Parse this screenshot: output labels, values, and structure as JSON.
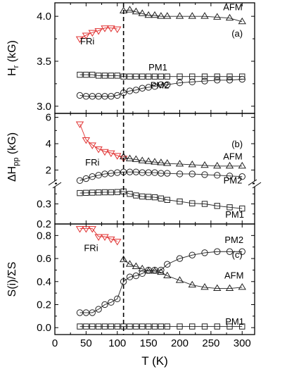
{
  "chart_data": {
    "type": "scatter",
    "x_axis": {
      "label": "T (K)",
      "range": [
        0,
        320
      ],
      "ticks": [
        0,
        50,
        100,
        150,
        200,
        250,
        300
      ],
      "tick_labels": [
        "0",
        "50",
        "100",
        "150",
        "200",
        "250",
        "300"
      ]
    },
    "vline": {
      "x": 110,
      "style": "dashed"
    },
    "colors": {
      "red": "#e03030",
      "black": "#222222"
    },
    "panels": [
      {
        "id": "a",
        "tag": "(a)",
        "ylabel": "H",
        "ylabel_sub": "r",
        "ylabel_unit": " (kG)",
        "ylim": [
          2.92,
          4.15
        ],
        "ticks": [
          3.0,
          3.5,
          4.0
        ],
        "tick_labels": [
          "3.0",
          "3.5",
          "4.0"
        ],
        "series": [
          {
            "name": "FRi",
            "marker": "tri-down",
            "color": "#e03030",
            "x": [
              40,
              50,
              60,
              70,
              80,
              90,
              100
            ],
            "y": [
              3.75,
              3.79,
              3.82,
              3.84,
              3.87,
              3.87,
              3.86
            ]
          },
          {
            "name": "AFM",
            "marker": "tri-up",
            "color": "#222222",
            "x": [
              110,
              120,
              130,
              140,
              150,
              160,
              170,
              180,
              200,
              220,
              240,
              260,
              280,
              300
            ],
            "y": [
              4.06,
              4.07,
              4.05,
              4.03,
              4.01,
              4.01,
              4.0,
              4.0,
              4.0,
              4.0,
              4.0,
              3.99,
              3.98,
              3.94
            ]
          },
          {
            "name": "PM1",
            "marker": "square",
            "color": "#222222",
            "x": [
              40,
              50,
              60,
              70,
              80,
              90,
              100,
              110,
              120,
              130,
              140,
              150,
              160,
              170,
              180,
              200,
              220,
              240,
              260,
              280,
              300
            ],
            "y": [
              3.35,
              3.35,
              3.35,
              3.34,
              3.34,
              3.34,
              3.34,
              3.33,
              3.33,
              3.33,
              3.33,
              3.33,
              3.33,
              3.33,
              3.33,
              3.33,
              3.33,
              3.33,
              3.33,
              3.33,
              3.33
            ]
          },
          {
            "name": "PM2",
            "marker": "circle",
            "color": "#222222",
            "x": [
              40,
              50,
              60,
              70,
              80,
              90,
              100,
              110,
              120,
              130,
              140,
              150,
              160,
              170,
              180,
              200,
              220,
              240,
              260,
              280,
              300
            ],
            "y": [
              3.12,
              3.11,
              3.11,
              3.11,
              3.11,
              3.11,
              3.12,
              3.15,
              3.17,
              3.18,
              3.2,
              3.21,
              3.22,
              3.24,
              3.24,
              3.26,
              3.27,
              3.28,
              3.29,
              3.29,
              3.3
            ]
          }
        ],
        "labels": [
          {
            "text": "FRi",
            "x": 52,
            "y": 3.72
          },
          {
            "text": "AFM",
            "x": 285,
            "y": 4.1
          },
          {
            "text": "PM1",
            "x": 165,
            "y": 3.43
          },
          {
            "text": "PM2",
            "x": 168,
            "y": 3.23
          }
        ]
      },
      {
        "id": "b",
        "tag": "(b)",
        "ylabel": "ΔH",
        "ylabel_sub": "pp",
        "ylabel_unit": " (kG)",
        "broken": true,
        "upper": {
          "ylim": [
            0.95,
            6.3
          ],
          "ticks": [
            2,
            4,
            6
          ],
          "tick_labels": [
            "2",
            "4",
            "6"
          ]
        },
        "lower": {
          "ylim": [
            0.2,
            0.4
          ],
          "ticks": [
            0.2,
            0.3
          ],
          "tick_labels": [
            "0.2",
            "0.3"
          ]
        },
        "series": [
          {
            "name": "FRi",
            "marker": "tri-down",
            "color": "#e03030",
            "segment": "upper",
            "x": [
              40,
              50,
              60,
              70,
              80,
              90,
              100,
              110
            ],
            "y": [
              5.5,
              4.3,
              3.9,
              3.6,
              3.4,
              3.3,
              3.1,
              2.9
            ]
          },
          {
            "name": "AFM",
            "marker": "tri-up",
            "color": "#222222",
            "segment": "upper",
            "x": [
              110,
              120,
              130,
              140,
              150,
              160,
              170,
              180,
              200,
              220,
              240,
              260,
              280,
              300
            ],
            "y": [
              3.0,
              2.85,
              2.8,
              2.7,
              2.65,
              2.6,
              2.55,
              2.5,
              2.45,
              2.4,
              2.35,
              2.3,
              2.3,
              2.3
            ]
          },
          {
            "name": "PM2",
            "marker": "circle",
            "color": "#222222",
            "segment": "upper",
            "x": [
              40,
              50,
              60,
              70,
              80,
              90,
              100,
              110,
              120,
              130,
              140,
              150,
              160,
              170,
              180,
              200,
              220,
              240,
              260,
              280,
              300
            ],
            "y": [
              1.2,
              1.35,
              1.5,
              1.6,
              1.7,
              1.75,
              1.8,
              1.85,
              1.85,
              1.85,
              1.8,
              1.8,
              1.8,
              1.75,
              1.75,
              1.7,
              1.7,
              1.65,
              1.6,
              1.55,
              1.5
            ]
          },
          {
            "name": "PM1",
            "marker": "square",
            "color": "#222222",
            "segment": "lower",
            "x": [
              40,
              50,
              60,
              70,
              80,
              90,
              100,
              110,
              120,
              130,
              140,
              150,
              160,
              170,
              180,
              200,
              220,
              240,
              260,
              280,
              300
            ],
            "y": [
              0.354,
              0.355,
              0.356,
              0.357,
              0.358,
              0.358,
              0.359,
              0.362,
              0.35,
              0.342,
              0.337,
              0.335,
              0.333,
              0.327,
              0.32,
              0.312,
              0.303,
              0.3,
              0.29,
              0.283,
              0.277
            ]
          }
        ],
        "labels": [
          {
            "text": "FRi",
            "x": 60,
            "y": 2.55,
            "segment": "upper"
          },
          {
            "text": "AFM",
            "x": 285,
            "y": 3.0,
            "segment": "upper"
          },
          {
            "text": "PM2",
            "x": 285,
            "y": 1.18,
            "segment": "upper"
          },
          {
            "text": "PM1",
            "x": 288,
            "y": 0.245,
            "segment": "lower"
          }
        ]
      },
      {
        "id": "c",
        "tag": "(c)",
        "ylabel": "S(i)/ΣS",
        "ylabel_sub": "",
        "ylabel_unit": "",
        "ylim": [
          -0.06,
          0.9
        ],
        "ticks": [
          0.0,
          0.2,
          0.4,
          0.6,
          0.8
        ],
        "tick_labels": [
          "0.0",
          "0.2",
          "0.4",
          "0.6",
          "0.8"
        ],
        "series": [
          {
            "name": "FRi",
            "marker": "tri-down",
            "color": "#e03030",
            "x": [
              40,
              50,
              60,
              70,
              80,
              90,
              100
            ],
            "y": [
              0.86,
              0.86,
              0.86,
              0.79,
              0.79,
              0.77,
              0.75
            ]
          },
          {
            "name": "AFM",
            "marker": "tri-up",
            "color": "#222222",
            "x": [
              110,
              120,
              130,
              140,
              150,
              160,
              170,
              180,
              200,
              220,
              240,
              260,
              280,
              300
            ],
            "y": [
              0.59,
              0.55,
              0.53,
              0.51,
              0.49,
              0.49,
              0.48,
              0.45,
              0.41,
              0.37,
              0.35,
              0.34,
              0.34,
              0.35
            ]
          },
          {
            "name": "PM2",
            "marker": "circle",
            "color": "#222222",
            "x": [
              40,
              50,
              60,
              70,
              80,
              90,
              100,
              110,
              120,
              130,
              140,
              150,
              160,
              170,
              180,
              200,
              220,
              240,
              260,
              280,
              300
            ],
            "y": [
              0.13,
              0.13,
              0.13,
              0.16,
              0.2,
              0.22,
              0.25,
              0.4,
              0.44,
              0.45,
              0.47,
              0.5,
              0.5,
              0.5,
              0.55,
              0.6,
              0.63,
              0.65,
              0.66,
              0.66,
              0.66
            ]
          },
          {
            "name": "PM1",
            "marker": "square",
            "color": "#222222",
            "x": [
              40,
              50,
              60,
              70,
              80,
              90,
              100,
              110,
              120,
              130,
              140,
              150,
              160,
              170,
              180,
              200,
              220,
              240,
              260,
              280,
              300
            ],
            "y": [
              0.01,
              0.01,
              0.01,
              0.01,
              0.01,
              0.01,
              0.01,
              0.01,
              0.01,
              0.01,
              0.01,
              0.01,
              0.01,
              0.01,
              0.01,
              0.01,
              0.01,
              0.01,
              0.01,
              0.01,
              0.01
            ]
          }
        ],
        "labels": [
          {
            "text": "FRi",
            "x": 58,
            "y": 0.69
          },
          {
            "text": "PM2",
            "x": 287,
            "y": 0.76
          },
          {
            "text": "AFM",
            "x": 287,
            "y": 0.45
          },
          {
            "text": "PM1",
            "x": 288,
            "y": 0.05
          }
        ]
      }
    ]
  }
}
